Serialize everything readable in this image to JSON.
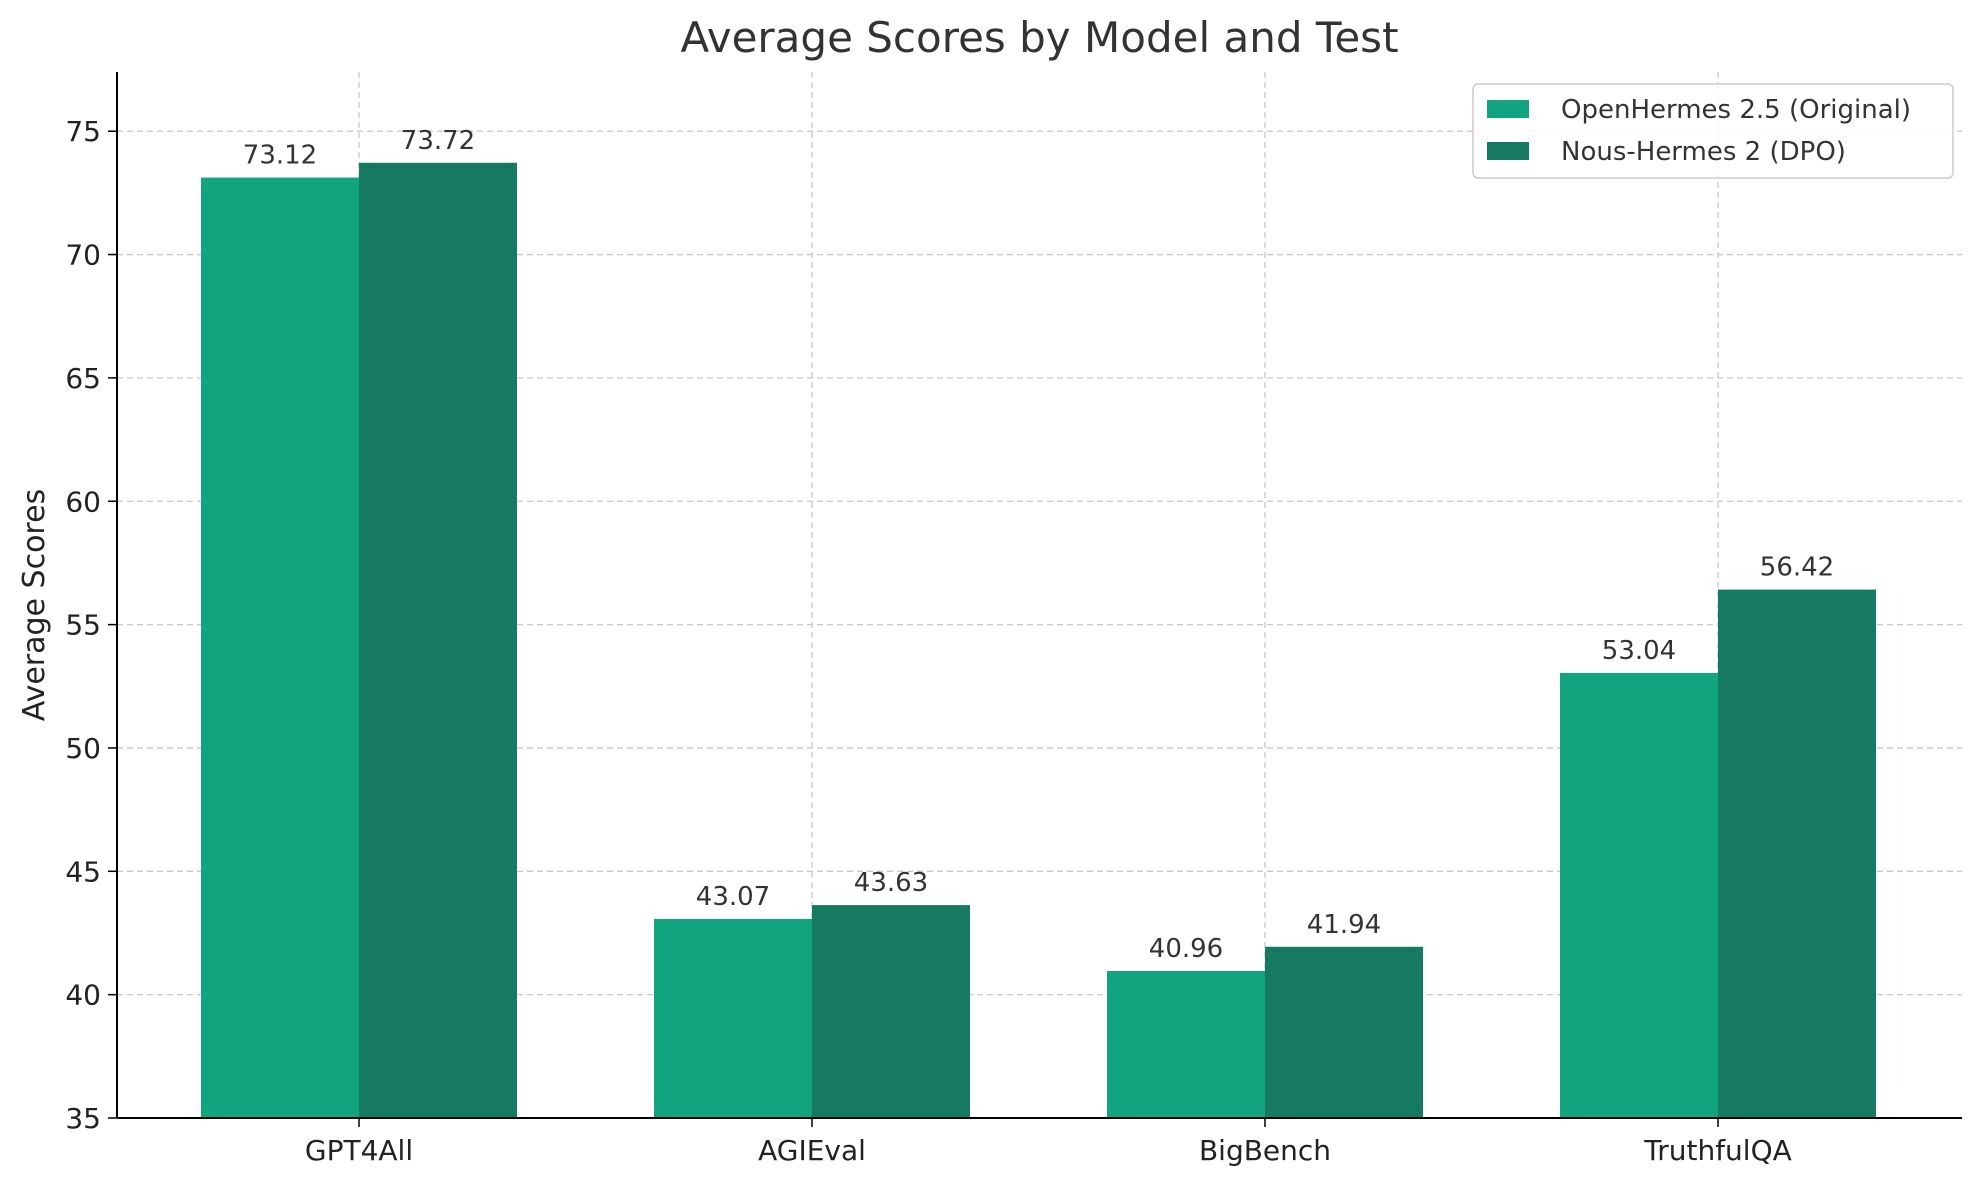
{
  "chart_data": {
    "type": "bar",
    "title": "Average Scores by Model and Test",
    "xlabel": "",
    "ylabel": "Average Scores",
    "categories": [
      "GPT4All",
      "AGIEval",
      "BigBench",
      "TruthfulQA"
    ],
    "series": [
      {
        "name": "OpenHermes 2.5 (Original)",
        "color": "#12a37f",
        "values": [
          73.12,
          43.07,
          40.96,
          53.04
        ]
      },
      {
        "name": "Nous-Hermes 2 (DPO)",
        "color": "#167a62",
        "values": [
          73.72,
          43.63,
          41.94,
          56.42
        ]
      }
    ],
    "value_labels": [
      [
        "73.12",
        "43.07",
        "40.96",
        "53.04"
      ],
      [
        "73.72",
        "43.63",
        "41.94",
        "56.42"
      ]
    ],
    "ylim": [
      35,
      77.4
    ],
    "yticks": [
      35,
      40,
      45,
      50,
      55,
      60,
      65,
      70,
      75
    ],
    "ytick_labels": [
      "35",
      "40",
      "45",
      "50",
      "55",
      "60",
      "65",
      "70",
      "75"
    ],
    "grid": true,
    "legend_position": "top-right"
  }
}
